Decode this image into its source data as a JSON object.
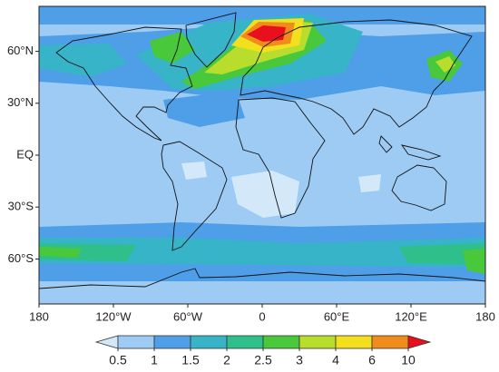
{
  "map": {
    "xlim": [
      -180,
      180
    ],
    "ylim": [
      -86,
      86
    ],
    "xticks": [
      {
        "value": -180,
        "label": "180"
      },
      {
        "value": -120,
        "label": "120°W"
      },
      {
        "value": -60,
        "label": "60°W"
      },
      {
        "value": 0,
        "label": "0"
      },
      {
        "value": 60,
        "label": "60°E"
      },
      {
        "value": 120,
        "label": "120°E"
      },
      {
        "value": 180,
        "label": "180"
      }
    ],
    "yticks": [
      {
        "value": 60,
        "label": "60°N"
      },
      {
        "value": 30,
        "label": "30°N"
      },
      {
        "value": 0,
        "label": "EQ"
      },
      {
        "value": -30,
        "label": "30°S"
      },
      {
        "value": -60,
        "label": "60°S"
      }
    ]
  },
  "colorbar": {
    "levels": [
      0.5,
      1,
      1.5,
      2,
      2.5,
      3,
      4,
      6,
      10
    ],
    "colors": [
      "#d3e9fa",
      "#9ecbf3",
      "#4f9ee8",
      "#37b4c8",
      "#2fbf8a",
      "#48c83a",
      "#b8dd2c",
      "#f2e01e",
      "#f08c1c",
      "#e8101c"
    ]
  }
}
